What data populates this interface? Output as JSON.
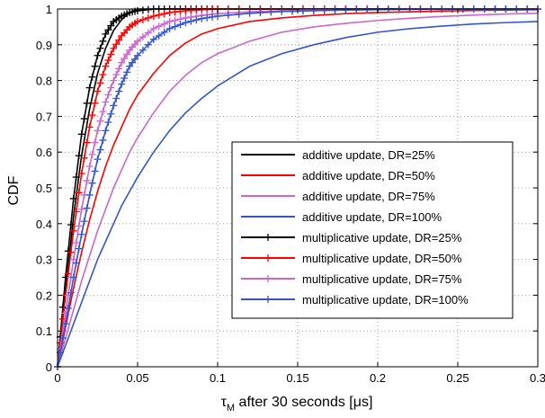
{
  "chart_data": {
    "type": "line",
    "title": "",
    "xlabel": "τ_M after 30 seconds [μs]",
    "xlabel_main": "τ",
    "xlabel_sub": "M",
    "xlabel_rest": " after 30 seconds [μs]",
    "ylabel": "CDF",
    "xlim": [
      0,
      0.3
    ],
    "ylim": [
      0,
      1
    ],
    "x_ticks": [
      0,
      0.05,
      0.1,
      0.15,
      0.2,
      0.25,
      0.3
    ],
    "x_tick_labels": [
      "0",
      "0.05",
      "0.1",
      "0.15",
      "0.2",
      "0.25",
      "0.3"
    ],
    "y_ticks": [
      0,
      0.1,
      0.2,
      0.3,
      0.4,
      0.5,
      0.6,
      0.7,
      0.8,
      0.9,
      1
    ],
    "y_tick_labels": [
      "0",
      "0.1",
      "0.2",
      "0.3",
      "0.4",
      "0.5",
      "0.6",
      "0.7",
      "0.8",
      "0.9",
      "1"
    ],
    "grid": true,
    "legend_position": "center-right",
    "x": [
      0,
      0.005,
      0.01,
      0.015,
      0.02,
      0.025,
      0.03,
      0.035,
      0.04,
      0.045,
      0.05,
      0.06,
      0.07,
      0.08,
      0.09,
      0.1,
      0.12,
      0.14,
      0.16,
      0.18,
      0.2,
      0.22,
      0.24,
      0.26,
      0.28,
      0.3
    ],
    "series": [
      {
        "name": "additive update, DR=25%",
        "color": "#000000",
        "marker": "none",
        "values": [
          0,
          0.21,
          0.42,
          0.59,
          0.72,
          0.82,
          0.89,
          0.94,
          0.97,
          0.99,
          1.0,
          1.0,
          1.0,
          1.0,
          1.0,
          1.0,
          1.0,
          1.0,
          1.0,
          1.0,
          1.0,
          1.0,
          1.0,
          1.0,
          1.0,
          1.0
        ]
      },
      {
        "name": "additive update, DR=50%",
        "color": "#ff0000",
        "marker": "none",
        "values": [
          0,
          0.11,
          0.22,
          0.32,
          0.41,
          0.49,
          0.56,
          0.62,
          0.67,
          0.72,
          0.76,
          0.82,
          0.87,
          0.905,
          0.93,
          0.945,
          0.965,
          0.975,
          0.982,
          0.987,
          0.99,
          0.992,
          0.994,
          0.996,
          0.997,
          0.998
        ]
      },
      {
        "name": "additive update, DR=75%",
        "color": "#cc66cc",
        "marker": "none",
        "values": [
          0,
          0.08,
          0.16,
          0.24,
          0.31,
          0.38,
          0.44,
          0.5,
          0.55,
          0.6,
          0.64,
          0.71,
          0.77,
          0.815,
          0.85,
          0.875,
          0.91,
          0.935,
          0.95,
          0.96,
          0.968,
          0.974,
          0.979,
          0.983,
          0.986,
          0.988
        ]
      },
      {
        "name": "additive update, DR=100%",
        "color": "#3355cc",
        "marker": "none",
        "values": [
          0,
          0.06,
          0.12,
          0.18,
          0.24,
          0.3,
          0.35,
          0.4,
          0.45,
          0.49,
          0.53,
          0.6,
          0.66,
          0.71,
          0.75,
          0.785,
          0.84,
          0.875,
          0.9,
          0.92,
          0.935,
          0.945,
          0.952,
          0.958,
          0.962,
          0.965
        ]
      },
      {
        "name": "multiplicative update, DR=25%",
        "color": "#000000",
        "marker": "plus",
        "values": [
          0,
          0.25,
          0.47,
          0.65,
          0.78,
          0.87,
          0.93,
          0.965,
          0.98,
          0.99,
          0.995,
          1.0,
          1.0,
          1.0,
          1.0,
          1.0,
          1.0,
          1.0,
          1.0,
          1.0,
          1.0,
          1.0,
          1.0,
          1.0,
          1.0,
          1.0
        ]
      },
      {
        "name": "multiplicative update, DR=50%",
        "color": "#ff0000",
        "marker": "plus",
        "values": [
          0,
          0.2,
          0.38,
          0.54,
          0.67,
          0.77,
          0.84,
          0.89,
          0.925,
          0.95,
          0.965,
          0.98,
          0.99,
          0.995,
          0.998,
          1.0,
          1.0,
          1.0,
          1.0,
          1.0,
          1.0,
          1.0,
          1.0,
          1.0,
          1.0,
          1.0
        ]
      },
      {
        "name": "multiplicative update, DR=75%",
        "color": "#cc66cc",
        "marker": "plus",
        "values": [
          0,
          0.15,
          0.3,
          0.44,
          0.56,
          0.66,
          0.74,
          0.8,
          0.85,
          0.885,
          0.91,
          0.945,
          0.965,
          0.975,
          0.982,
          0.987,
          0.992,
          0.995,
          0.997,
          0.998,
          0.999,
          1.0,
          1.0,
          1.0,
          1.0,
          1.0
        ]
      },
      {
        "name": "multiplicative update, DR=100%",
        "color": "#3355cc",
        "marker": "plus",
        "values": [
          0,
          0.12,
          0.25,
          0.37,
          0.48,
          0.58,
          0.66,
          0.73,
          0.79,
          0.84,
          0.87,
          0.915,
          0.945,
          0.962,
          0.973,
          0.98,
          0.988,
          0.993,
          0.995,
          0.997,
          0.998,
          0.999,
          0.999,
          1.0,
          1.0,
          1.0
        ]
      }
    ]
  }
}
